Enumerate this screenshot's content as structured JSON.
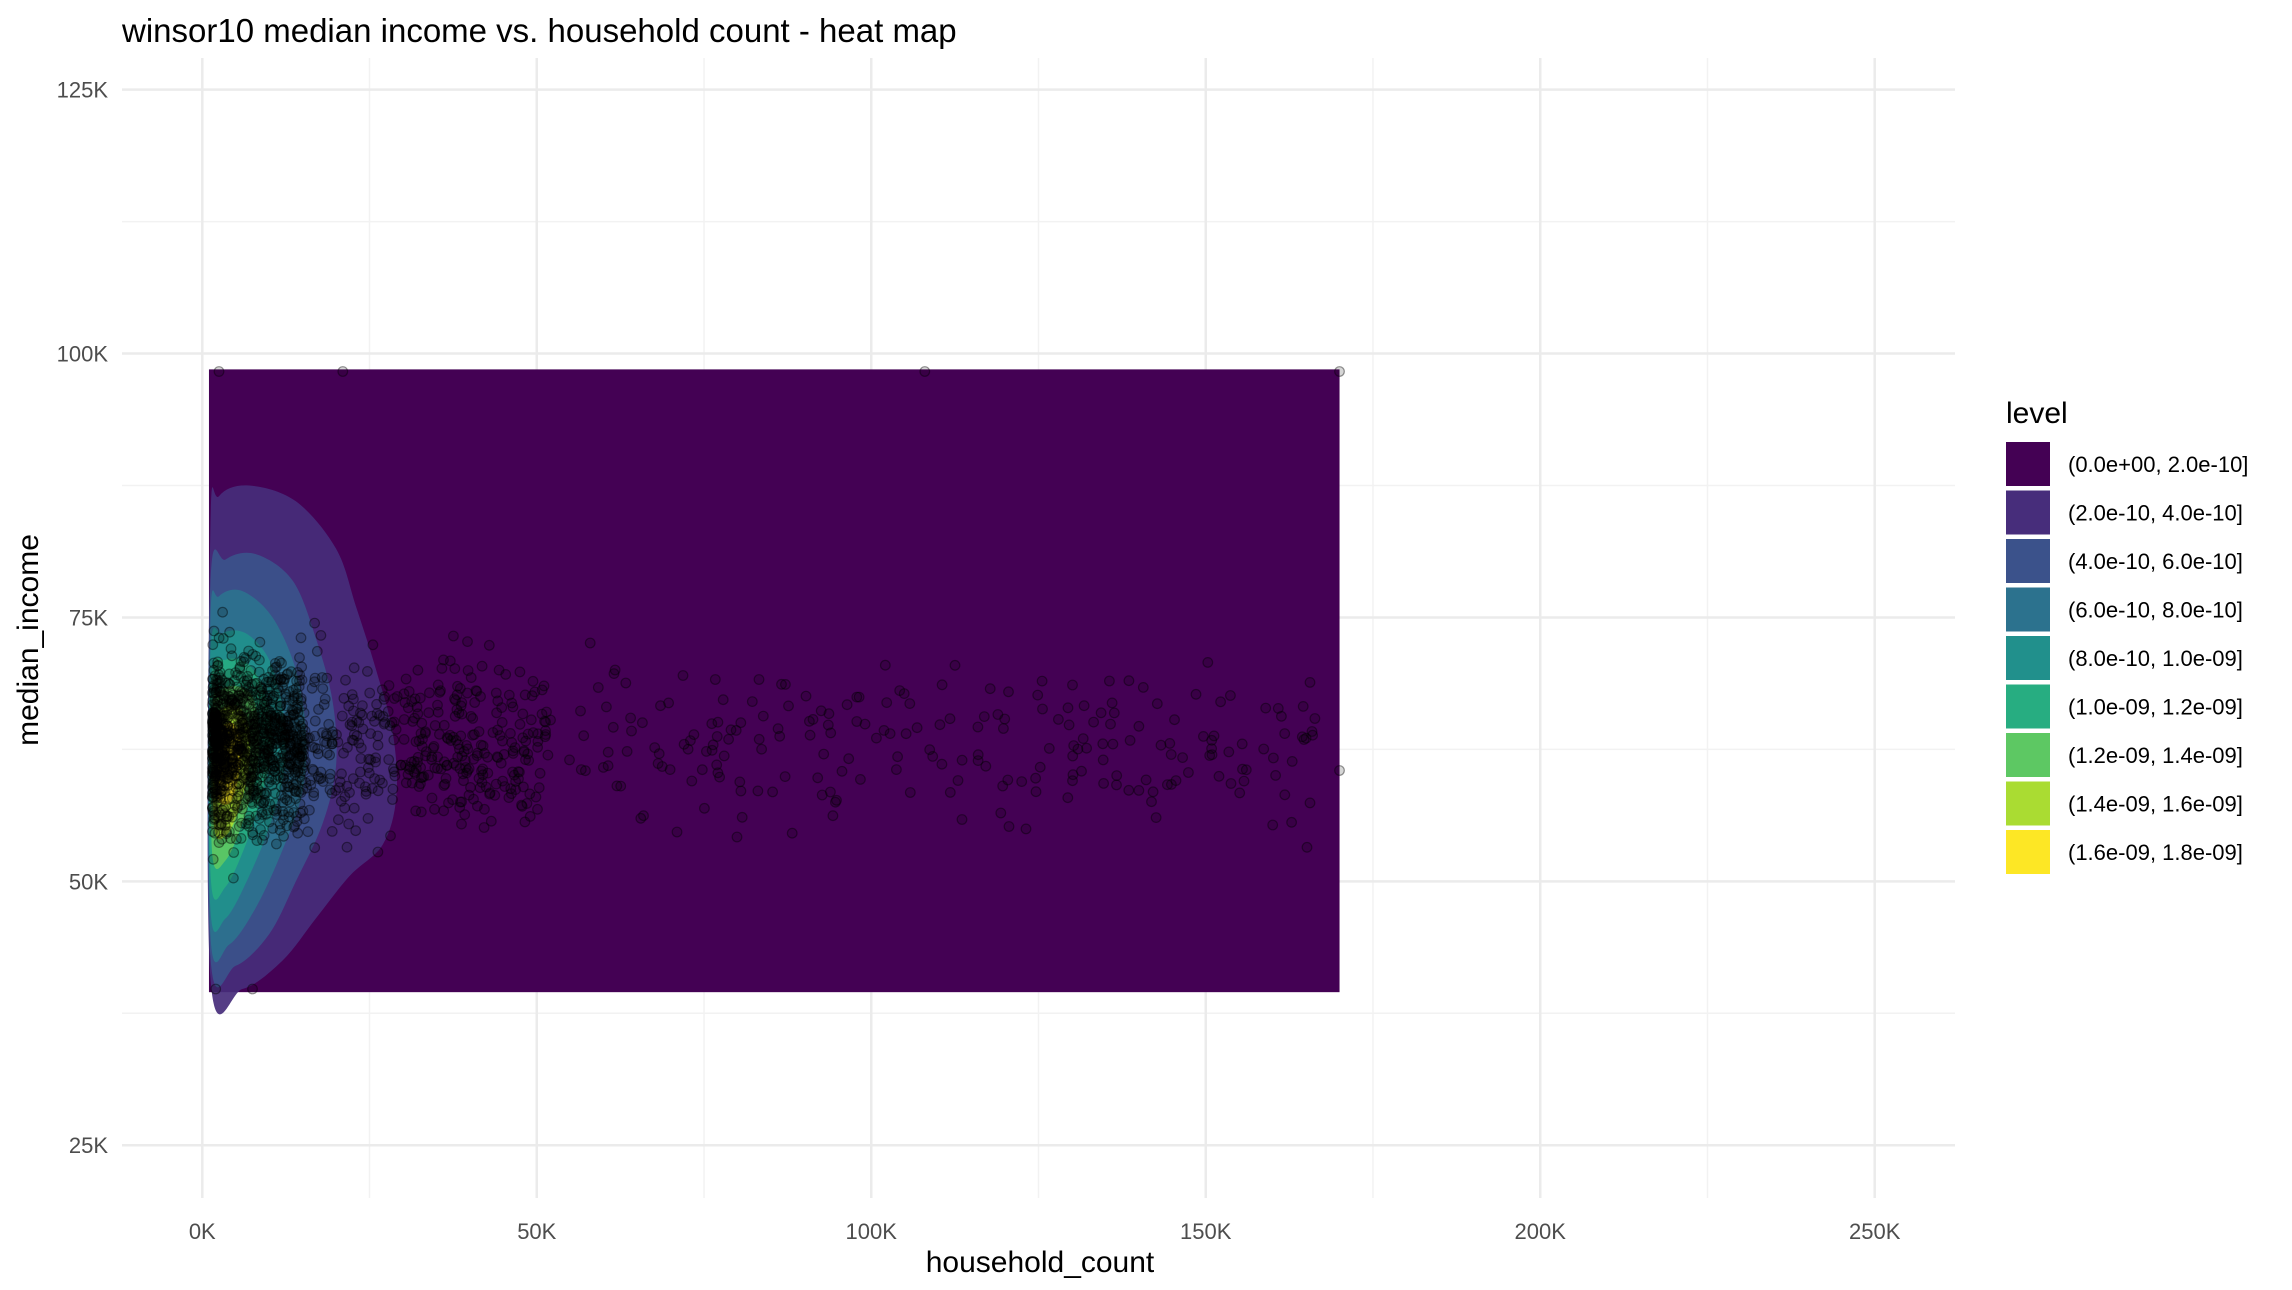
{
  "chart_data": {
    "type": "heatmap",
    "title": "winsor10 median income vs. household count - heat map",
    "xlabel": "household_count",
    "ylabel": "median_income",
    "xlim": [
      -12000,
      262000
    ],
    "ylim": [
      20000,
      128000
    ],
    "x_ticks": [
      {
        "value": 0,
        "label": "0K"
      },
      {
        "value": 50000,
        "label": "50K"
      },
      {
        "value": 100000,
        "label": "100K"
      },
      {
        "value": 150000,
        "label": "150K"
      },
      {
        "value": 200000,
        "label": "200K"
      },
      {
        "value": 250000,
        "label": "250K"
      }
    ],
    "y_ticks": [
      {
        "value": 25000,
        "label": "25K"
      },
      {
        "value": 50000,
        "label": "50K"
      },
      {
        "value": 75000,
        "label": "75K"
      },
      {
        "value": 100000,
        "label": "100K"
      },
      {
        "value": 125000,
        "label": "125K"
      }
    ],
    "grid": true,
    "legend": {
      "title": "level",
      "placement": "right",
      "levels": [
        {
          "label": "(0.0e+00, 2.0e-10]",
          "color": "#440154"
        },
        {
          "label": "(2.0e-10, 4.0e-10]",
          "color": "#472D7B"
        },
        {
          "label": "(4.0e-10, 6.0e-10]",
          "color": "#3B528B"
        },
        {
          "label": "(6.0e-10, 8.0e-10]",
          "color": "#2C728E"
        },
        {
          "label": "(8.0e-10, 1.0e-09]",
          "color": "#21908C"
        },
        {
          "label": "(1.0e-09, 1.2e-09]",
          "color": "#27AD81"
        },
        {
          "label": "(1.2e-09, 1.4e-09]",
          "color": "#5DC863"
        },
        {
          "label": "(1.4e-09, 1.6e-09]",
          "color": "#AADC32"
        },
        {
          "label": "(1.6e-09, 1.8e-09]",
          "color": "#FDE725"
        }
      ]
    },
    "density_regions": [
      {
        "level": 0,
        "points": [
          [
            1000,
            39500
          ],
          [
            170000,
            39500
          ],
          [
            170000,
            98500
          ],
          [
            1000,
            98500
          ]
        ]
      },
      {
        "level": 1,
        "points": [
          [
            1200,
            41000
          ],
          [
            6000,
            39800
          ],
          [
            12000,
            42500
          ],
          [
            17000,
            46500
          ],
          [
            22000,
            50500
          ],
          [
            27000,
            53500
          ],
          [
            29000,
            58000
          ],
          [
            28500,
            64000
          ],
          [
            26000,
            70000
          ],
          [
            23000,
            76000
          ],
          [
            20000,
            81500
          ],
          [
            14000,
            86000
          ],
          [
            7000,
            87500
          ],
          [
            2500,
            86500
          ],
          [
            1200,
            83000
          ]
        ]
      },
      {
        "level": 2,
        "points": [
          [
            1200,
            43000
          ],
          [
            5000,
            42000
          ],
          [
            10000,
            45000
          ],
          [
            14000,
            50000
          ],
          [
            18000,
            55500
          ],
          [
            20000,
            61000
          ],
          [
            19500,
            67000
          ],
          [
            17000,
            73000
          ],
          [
            13500,
            78500
          ],
          [
            8000,
            81000
          ],
          [
            3500,
            80500
          ],
          [
            1200,
            78000
          ]
        ]
      },
      {
        "level": 3,
        "points": [
          [
            1200,
            45000
          ],
          [
            4000,
            44000
          ],
          [
            8000,
            47500
          ],
          [
            12000,
            53000
          ],
          [
            15000,
            58500
          ],
          [
            15500,
            64000
          ],
          [
            14000,
            70000
          ],
          [
            10500,
            75000
          ],
          [
            6000,
            77500
          ],
          [
            2500,
            77000
          ],
          [
            1200,
            74500
          ]
        ]
      },
      {
        "level": 4,
        "points": [
          [
            1200,
            47500
          ],
          [
            3500,
            46500
          ],
          [
            7000,
            50500
          ],
          [
            10500,
            56000
          ],
          [
            12500,
            61500
          ],
          [
            12000,
            66500
          ],
          [
            10000,
            71000
          ],
          [
            6500,
            73500
          ],
          [
            3000,
            73500
          ],
          [
            1200,
            71500
          ]
        ]
      },
      {
        "level": 5,
        "points": [
          [
            1300,
            50000
          ],
          [
            3500,
            49500
          ],
          [
            6500,
            53500
          ],
          [
            9000,
            58500
          ],
          [
            10500,
            63000
          ],
          [
            9500,
            67500
          ],
          [
            7000,
            70500
          ],
          [
            3500,
            71000
          ],
          [
            1300,
            69000
          ]
        ]
      },
      {
        "level": 6,
        "points": [
          [
            1500,
            52500
          ],
          [
            3500,
            52000
          ],
          [
            6000,
            55500
          ],
          [
            8000,
            60000
          ],
          [
            8500,
            64000
          ],
          [
            7500,
            67500
          ],
          [
            5000,
            68500
          ],
          [
            2500,
            68000
          ],
          [
            1500,
            66000
          ]
        ]
      },
      {
        "level": 7,
        "points": [
          [
            1800,
            55000
          ],
          [
            3800,
            54500
          ],
          [
            5800,
            57500
          ],
          [
            7000,
            61000
          ],
          [
            7000,
            64500
          ],
          [
            5500,
            66500
          ],
          [
            3200,
            66500
          ],
          [
            1800,
            64500
          ]
        ]
      },
      {
        "level": 8,
        "points": [
          [
            2200,
            58000
          ],
          [
            4200,
            57500
          ],
          [
            5600,
            60500
          ],
          [
            5800,
            63500
          ],
          [
            4500,
            65000
          ],
          [
            2800,
            64500
          ],
          [
            2200,
            62500
          ]
        ]
      }
    ]
  }
}
